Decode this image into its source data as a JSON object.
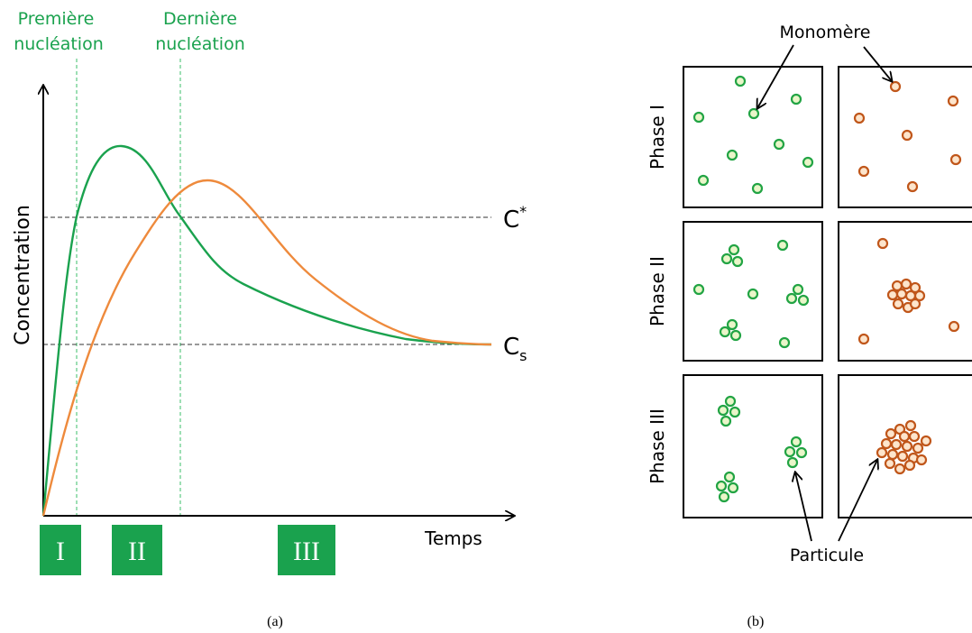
{
  "panel_a": {
    "first_nucleation": [
      "Première",
      "nucléation"
    ],
    "last_nucleation": [
      "Dernière",
      "nucléation"
    ],
    "y_axis_label": "Concentration",
    "x_axis_label": "Temps",
    "c_star": {
      "base": "C",
      "sup": "*"
    },
    "c_s": {
      "base": "C",
      "sub": "s"
    },
    "phases": [
      "I",
      "II",
      "III"
    ],
    "caption": "(a)"
  },
  "panel_b": {
    "monomer_label": "Monomère",
    "rows": [
      "Phase I",
      "Phase II",
      "Phase III"
    ],
    "particle_label": "Particule",
    "caption": "(b)"
  }
}
